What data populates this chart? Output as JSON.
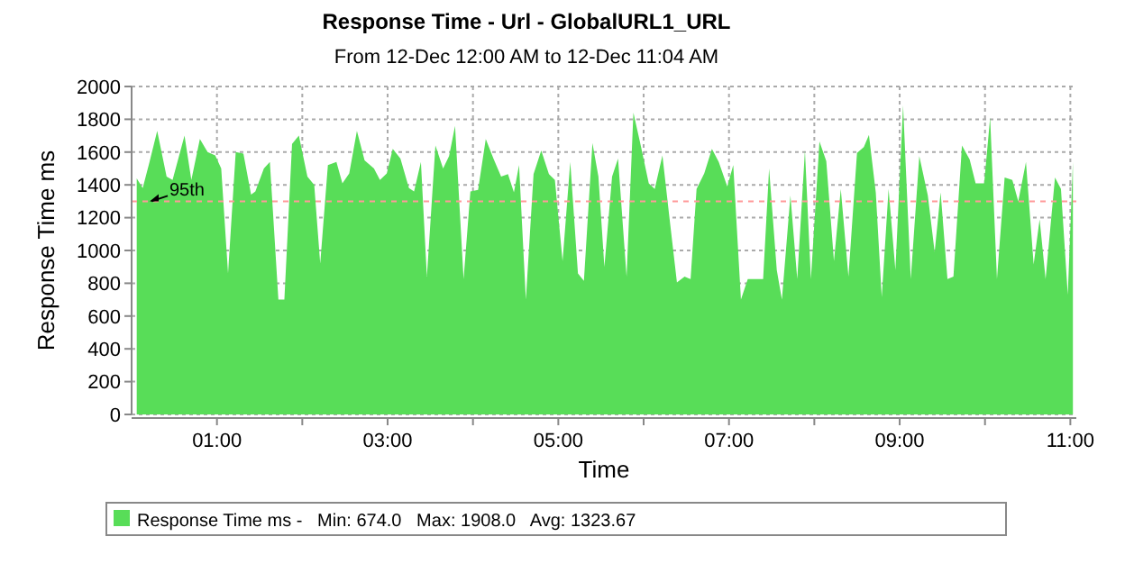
{
  "chart_data": {
    "type": "area",
    "title": "Response Time - Url  - GlobalURL1_URL",
    "subtitle": "From 12-Dec 12:00 AM to 12-Dec 11:04 AM",
    "xlabel": "Time",
    "ylabel": "Response Time ms",
    "x": [
      0.06,
      0.13,
      0.21,
      0.3,
      0.41,
      0.48,
      0.62,
      0.7,
      0.8,
      0.89,
      0.98,
      1.05,
      1.13,
      1.22,
      1.31,
      1.4,
      1.45,
      1.55,
      1.62,
      1.72,
      1.79,
      1.88,
      1.96,
      2.06,
      2.14,
      2.21,
      2.3,
      2.4,
      2.47,
      2.55,
      2.64,
      2.73,
      2.84,
      2.91,
      2.99,
      3.06,
      3.15,
      3.25,
      3.31,
      3.39,
      3.46,
      3.56,
      3.65,
      3.72,
      3.79,
      3.89,
      3.97,
      4.06,
      4.15,
      4.24,
      4.33,
      4.41,
      4.48,
      4.54,
      4.62,
      4.71,
      4.8,
      4.89,
      4.96,
      5.05,
      5.14,
      5.23,
      5.3,
      5.4,
      5.47,
      5.54,
      5.63,
      5.7,
      5.8,
      5.88,
      5.97,
      6.06,
      6.13,
      6.22,
      6.3,
      6.39,
      6.48,
      6.55,
      6.62,
      6.71,
      6.8,
      6.88,
      6.98,
      7.05,
      7.14,
      7.22,
      7.33,
      7.4,
      7.47,
      7.56,
      7.62,
      7.72,
      7.8,
      7.89,
      7.96,
      8.06,
      8.14,
      8.23,
      8.31,
      8.4,
      8.5,
      8.58,
      8.64,
      8.72,
      8.79,
      8.87,
      8.95,
      9.04,
      9.13,
      9.23,
      9.33,
      9.41,
      9.48,
      9.56,
      9.63,
      9.73,
      9.82,
      9.89,
      9.99,
      10.06,
      10.14,
      10.23,
      10.32,
      10.39,
      10.48,
      10.57,
      10.64,
      10.71,
      10.82,
      10.89,
      10.97,
      11.03
    ],
    "series": [
      {
        "name": "Response Time ms -   Min: 674.0   Max: 1908.0   Avg: 1323.67",
        "color": "#58dd58",
        "values": [
          1440,
          1380,
          1540,
          1730,
          1450,
          1430,
          1700,
          1430,
          1680,
          1600,
          1580,
          1500,
          860,
          1600,
          1590,
          1340,
          1360,
          1500,
          1540,
          700,
          700,
          1650,
          1700,
          1450,
          1400,
          920,
          1520,
          1540,
          1410,
          1470,
          1730,
          1550,
          1500,
          1430,
          1470,
          1620,
          1560,
          1380,
          1360,
          1540,
          840,
          1640,
          1500,
          1575,
          1760,
          825,
          1360,
          1370,
          1680,
          1560,
          1450,
          1465,
          1355,
          1520,
          700,
          1465,
          1610,
          1465,
          1430,
          935,
          1540,
          860,
          815,
          1655,
          1450,
          900,
          1450,
          1560,
          840,
          1840,
          1630,
          1410,
          1375,
          1580,
          1210,
          805,
          840,
          825,
          1375,
          1470,
          1620,
          1540,
          1390,
          1520,
          700,
          825,
          825,
          825,
          1500,
          880,
          700,
          1335,
          825,
          1610,
          825,
          1665,
          1545,
          935,
          1375,
          840,
          1595,
          1630,
          1705,
          1355,
          715,
          1375,
          880,
          1885,
          825,
          1575,
          1335,
          990,
          1355,
          825,
          840,
          1640,
          1555,
          1410,
          1410,
          1810,
          825,
          1445,
          1430,
          1300,
          1540,
          915,
          1190,
          825,
          1445,
          1375,
          730,
          1540
        ]
      }
    ],
    "xlim": [
      0,
      11.07
    ],
    "xticks": [
      {
        "value": 1,
        "label": "01:00"
      },
      {
        "value": 2,
        "label": null
      },
      {
        "value": 3,
        "label": "03:00"
      },
      {
        "value": 4,
        "label": null
      },
      {
        "value": 5,
        "label": "05:00"
      },
      {
        "value": 6,
        "label": null
      },
      {
        "value": 7,
        "label": "07:00"
      },
      {
        "value": 8,
        "label": null
      },
      {
        "value": 9,
        "label": "09:00"
      },
      {
        "value": 10,
        "label": null
      },
      {
        "value": 11,
        "label": "11:00"
      }
    ],
    "ylim": [
      0,
      2000
    ],
    "yticks": [
      0,
      200,
      400,
      600,
      800,
      1000,
      1200,
      1400,
      1600,
      1800,
      2000
    ],
    "ref_lines": [
      {
        "axis": "y",
        "value": 1300,
        "label": "95th",
        "color": "#ff9999",
        "line_style": "dashed"
      }
    ],
    "grid": true,
    "legend": "bottom"
  }
}
